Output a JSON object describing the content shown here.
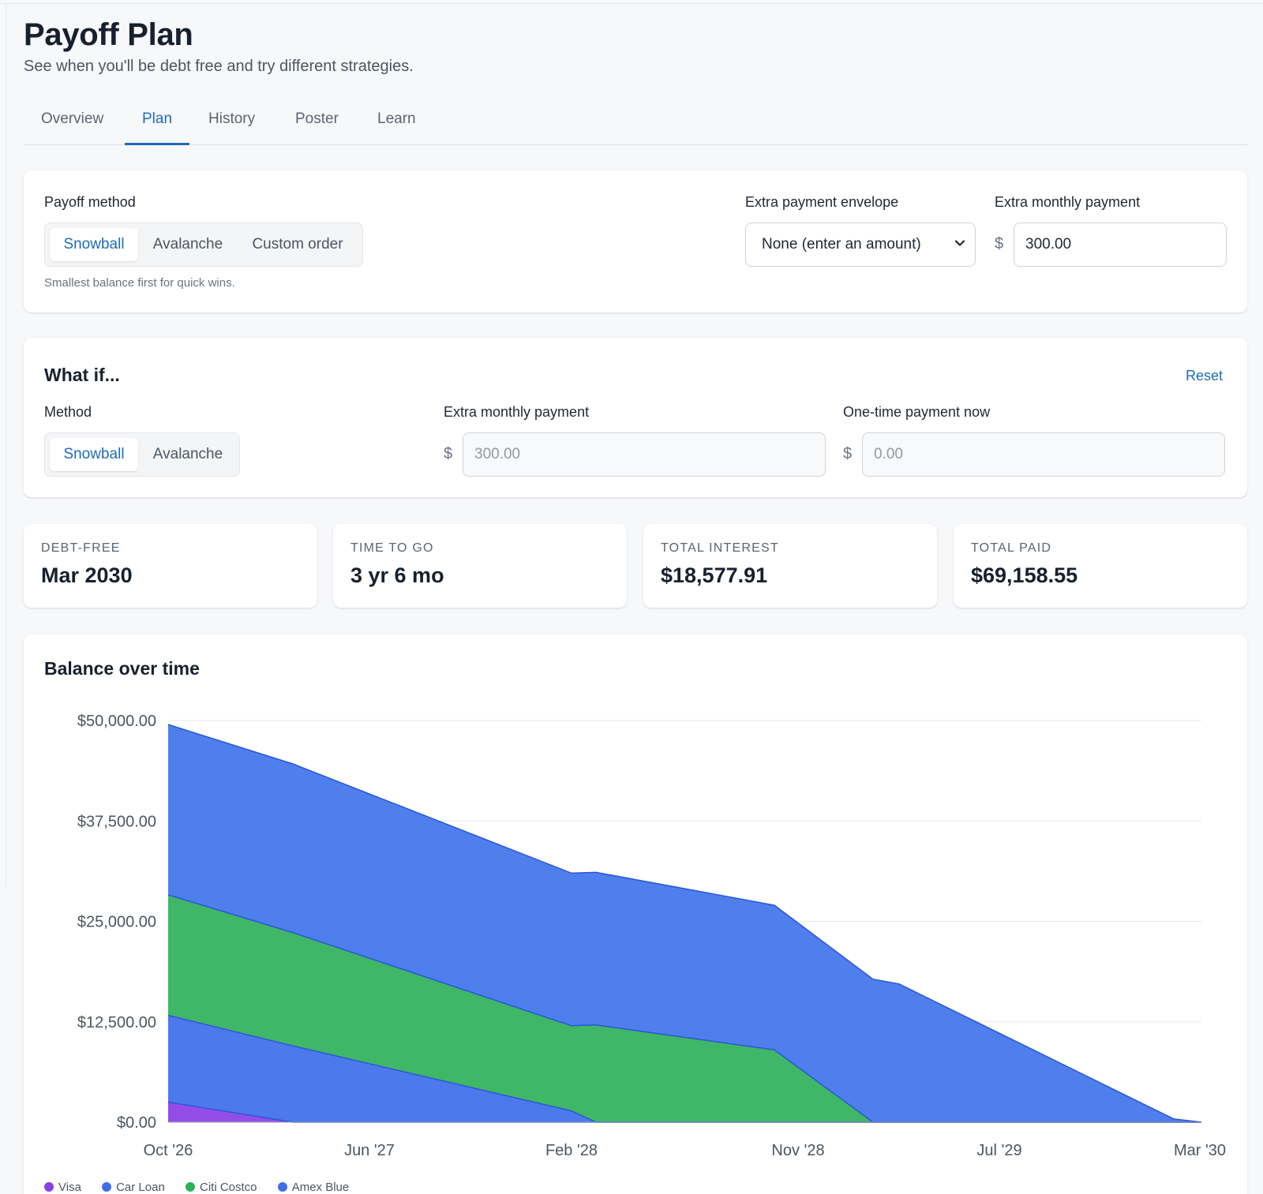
{
  "header": {
    "title": "Payoff Plan",
    "subtitle": "See when you'll be debt free and try different strategies."
  },
  "tabs": [
    {
      "label": "Overview",
      "active": false
    },
    {
      "label": "Plan",
      "active": true
    },
    {
      "label": "History",
      "active": false
    },
    {
      "label": "Poster",
      "active": false
    },
    {
      "label": "Learn",
      "active": false
    }
  ],
  "settings": {
    "method_label": "Payoff method",
    "methods": [
      "Snowball",
      "Avalanche",
      "Custom order"
    ],
    "selected_method": "Snowball",
    "method_hint": "Smallest balance first for quick wins.",
    "envelope_label": "Extra payment envelope",
    "envelope_value": "None (enter an amount)",
    "extra_label": "Extra monthly payment",
    "currency_symbol": "$",
    "extra_value": "300.00"
  },
  "whatif": {
    "title": "What if...",
    "reset_label": "Reset",
    "method_label": "Method",
    "methods": [
      "Snowball",
      "Avalanche"
    ],
    "selected_method": "Snowball",
    "extra_label": "Extra monthly payment",
    "extra_placeholder": "300.00",
    "onetime_label": "One-time payment now",
    "onetime_placeholder": "0.00"
  },
  "stats": [
    {
      "label": "DEBT-FREE",
      "value": "Mar 2030"
    },
    {
      "label": "TIME TO GO",
      "value": "3 yr 6 mo"
    },
    {
      "label": "TOTAL INTEREST",
      "value": "$18,577.91"
    },
    {
      "label": "TOTAL PAID",
      "value": "$69,158.55"
    }
  ],
  "chart_title": "Balance over time",
  "chart_data": {
    "type": "area",
    "stacked": true,
    "title": "Balance over time",
    "x_labels": [
      "Oct '26",
      "Jun '27",
      "Feb '28",
      "Nov '28",
      "Jul '29",
      "Mar '30"
    ],
    "x_months": [
      "Oct '26",
      "Feb '27",
      "Feb '28",
      "Mar '28",
      "Sep '28",
      "Feb '29",
      "Mar '29",
      "Jan '30",
      "Mar '30"
    ],
    "y_ticks": [
      "$0.00",
      "$12,500.00",
      "$25,000.00",
      "$37,500.00",
      "$50,000.00"
    ],
    "ylim": [
      0,
      50000
    ],
    "grid": true,
    "legend_position": "bottom-left",
    "series": [
      {
        "name": "Visa",
        "color": "#8b3fe6",
        "values": [
          2500,
          0,
          0,
          0,
          0,
          0,
          0,
          0,
          0
        ]
      },
      {
        "name": "Car Loan",
        "color": "#3d6fea",
        "values": [
          10800,
          9500,
          1400,
          0,
          0,
          0,
          0,
          0,
          0
        ]
      },
      {
        "name": "Citi Costco",
        "color": "#2fb15a",
        "values": [
          15000,
          14100,
          10600,
          12100,
          9000,
          0,
          0,
          0,
          0
        ]
      },
      {
        "name": "Amex Blue",
        "color": "#4074ea",
        "values": [
          21200,
          21000,
          19000,
          19000,
          18000,
          17800,
          17200,
          400,
          0
        ]
      }
    ]
  },
  "legend": [
    "Visa",
    "Car Loan",
    "Citi Costco",
    "Amex Blue"
  ],
  "colors": {
    "accent": "#1e6bb8"
  }
}
